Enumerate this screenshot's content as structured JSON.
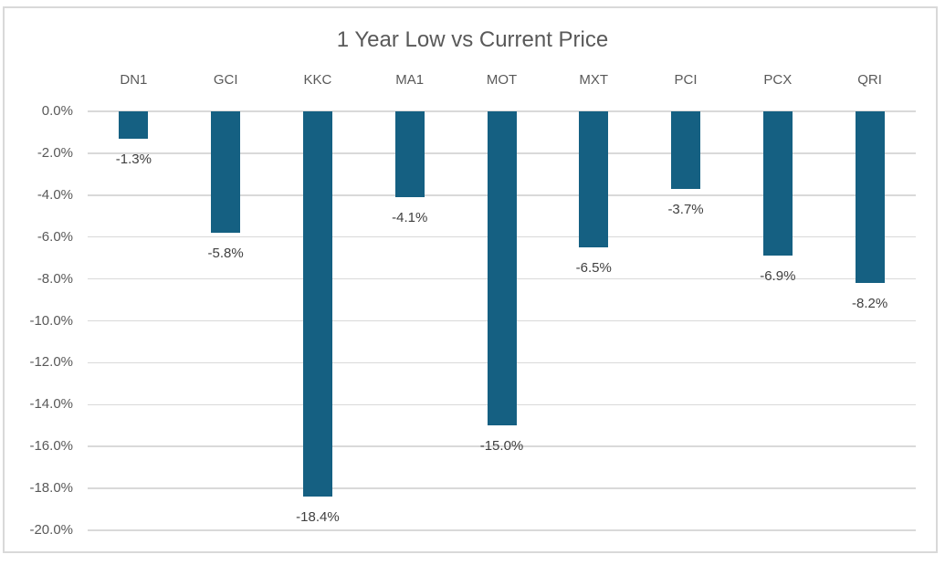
{
  "chart_data": {
    "type": "bar",
    "title": "1 Year Low vs Current Price",
    "categories": [
      "DN1",
      "GCI",
      "KKC",
      "MA1",
      "MOT",
      "MXT",
      "PCI",
      "PCX",
      "QRI"
    ],
    "values": [
      -1.3,
      -5.8,
      -18.4,
      -4.1,
      -15.0,
      -6.5,
      -3.7,
      -6.9,
      -8.2
    ],
    "data_labels": [
      "-1.3%",
      "-5.8%",
      "-18.4%",
      "-4.1%",
      "-15.0%",
      "-6.5%",
      "-3.7%",
      "-6.9%",
      "-8.2%"
    ],
    "y_ticks": [
      "0.0%",
      "-2.0%",
      "-4.0%",
      "-6.0%",
      "-8.0%",
      "-10.0%",
      "-12.0%",
      "-14.0%",
      "-16.0%",
      "-18.0%",
      "-20.0%"
    ],
    "ylim": [
      -20,
      0
    ],
    "y_step": 2,
    "xlabel": "",
    "ylabel": "",
    "grid": true,
    "legend": "none",
    "category_axis_position": "top",
    "colors": {
      "bar": "#156082",
      "gridline": "#D9D9D9",
      "title_text": "#595959",
      "axis_text": "#595959",
      "data_label_text": "#404040",
      "frame_border": "#D9D9D9",
      "background": "#FFFFFF"
    }
  }
}
